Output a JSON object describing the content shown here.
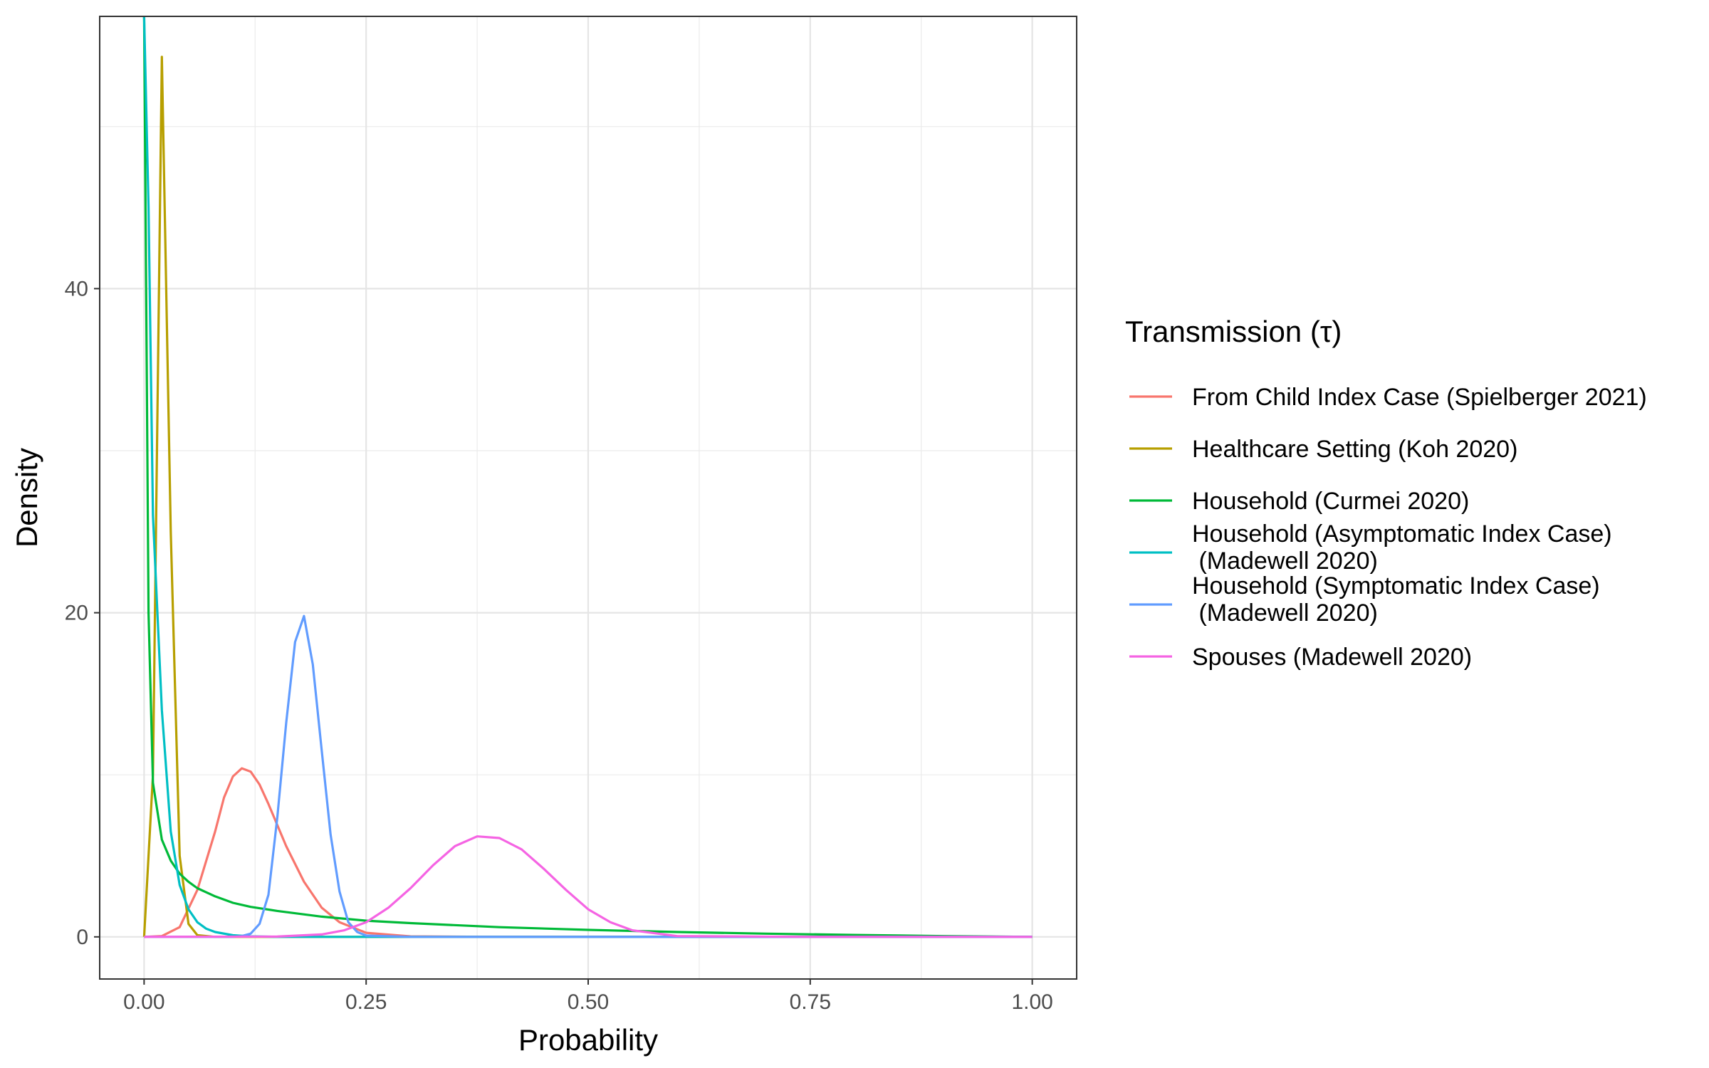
{
  "chart_data": {
    "type": "line",
    "xlabel": "Probability",
    "ylabel": "Density",
    "xlim": [
      -0.05,
      1.05
    ],
    "ylim": [
      -2.6,
      56.8
    ],
    "x_ticks": [
      0.0,
      0.25,
      0.5,
      0.75,
      1.0
    ],
    "x_tick_labels": [
      "0.00",
      "0.25",
      "0.50",
      "0.75",
      "1.00"
    ],
    "y_ticks": [
      0,
      20,
      40
    ],
    "y_tick_labels": [
      "0",
      "20",
      "40"
    ],
    "grid": true,
    "legend": {
      "title": "Transmission (τ)",
      "position": "right"
    },
    "series": [
      {
        "name": "From Child Index Case (Spielberger 2021)",
        "color": "#F8766D",
        "x": [
          0.0,
          0.02,
          0.04,
          0.06,
          0.08,
          0.09,
          0.1,
          0.11,
          0.12,
          0.13,
          0.14,
          0.16,
          0.18,
          0.2,
          0.22,
          0.25,
          0.3,
          0.4,
          0.5,
          0.75,
          1.0
        ],
        "y": [
          0.0,
          0.05,
          0.6,
          2.9,
          6.5,
          8.6,
          9.9,
          10.4,
          10.2,
          9.4,
          8.2,
          5.6,
          3.4,
          1.8,
          0.9,
          0.25,
          0.03,
          0.0,
          0.0,
          0.0,
          0.0
        ]
      },
      {
        "name": "Healthcare Setting (Koh 2020)",
        "color": "#B79F00",
        "x": [
          0.0,
          0.01,
          0.02,
          0.03,
          0.04,
          0.05,
          0.06,
          0.08,
          0.1,
          0.25,
          0.5,
          0.75,
          1.0
        ],
        "y": [
          0.0,
          10.0,
          54.3,
          25.0,
          5.0,
          0.8,
          0.1,
          0.0,
          0.0,
          0.0,
          0.0,
          0.0,
          0.0
        ]
      },
      {
        "name": "Household (Curmei 2020)",
        "color": "#00BA38",
        "x": [
          0.0,
          0.005,
          0.01,
          0.02,
          0.03,
          0.04,
          0.05,
          0.06,
          0.08,
          0.1,
          0.12,
          0.15,
          0.2,
          0.25,
          0.3,
          0.4,
          0.5,
          0.6,
          0.7,
          0.8,
          0.9,
          1.0
        ],
        "y": [
          56.8,
          20.0,
          9.5,
          6.0,
          4.7,
          3.9,
          3.4,
          3.0,
          2.5,
          2.1,
          1.85,
          1.6,
          1.25,
          1.0,
          0.85,
          0.6,
          0.43,
          0.3,
          0.2,
          0.12,
          0.05,
          0.0
        ]
      },
      {
        "name": "Household (Asymptomatic Index Case)\n (Madewell 2020)",
        "color": "#00BFC4",
        "x": [
          0.0,
          0.005,
          0.01,
          0.02,
          0.03,
          0.04,
          0.05,
          0.06,
          0.07,
          0.08,
          0.1,
          0.12,
          0.15,
          0.25,
          0.5,
          0.75,
          1.0
        ],
        "y": [
          56.8,
          45.0,
          26.0,
          14.0,
          6.5,
          3.2,
          1.7,
          0.9,
          0.5,
          0.3,
          0.1,
          0.03,
          0.0,
          0.0,
          0.0,
          0.0,
          0.0
        ]
      },
      {
        "name": "Household (Symptomatic Index Case)\n (Madewell 2020)",
        "color": "#619CFF",
        "x": [
          0.0,
          0.1,
          0.11,
          0.12,
          0.13,
          0.14,
          0.15,
          0.16,
          0.17,
          0.18,
          0.19,
          0.2,
          0.21,
          0.22,
          0.23,
          0.24,
          0.25,
          0.3,
          0.5,
          0.75,
          1.0
        ],
        "y": [
          0.0,
          0.0,
          0.05,
          0.2,
          0.8,
          2.6,
          7.4,
          13.2,
          18.2,
          19.8,
          16.8,
          11.5,
          6.3,
          2.8,
          0.9,
          0.3,
          0.08,
          0.0,
          0.0,
          0.0,
          0.0
        ]
      },
      {
        "name": "Spouses (Madewell 2020)",
        "color": "#F564E3",
        "x": [
          0.0,
          0.15,
          0.2,
          0.225,
          0.25,
          0.275,
          0.3,
          0.325,
          0.35,
          0.375,
          0.4,
          0.425,
          0.45,
          0.475,
          0.5,
          0.525,
          0.55,
          0.6,
          0.75,
          1.0
        ],
        "y": [
          0.0,
          0.02,
          0.15,
          0.4,
          0.9,
          1.8,
          3.0,
          4.4,
          5.6,
          6.2,
          6.1,
          5.4,
          4.2,
          2.9,
          1.7,
          0.9,
          0.4,
          0.05,
          0.0,
          0.0
        ]
      }
    ]
  }
}
